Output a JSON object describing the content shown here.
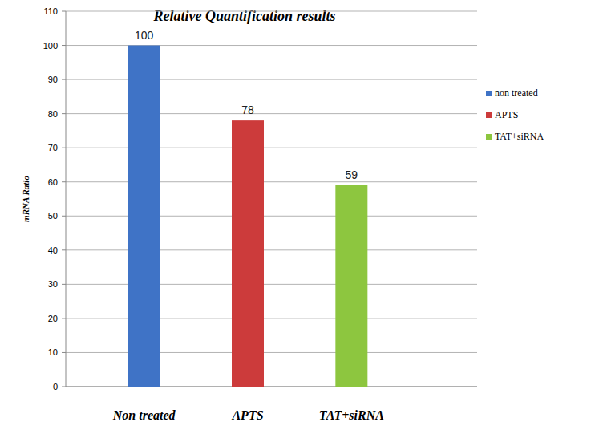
{
  "chart_data": {
    "type": "bar",
    "title": "Relative Quantification results",
    "y_label": "mRNA Ratio",
    "categories": [
      "Non treated",
      "APTS",
      "TAT+siRNA"
    ],
    "series": [
      {
        "name": "non treated",
        "color": "#3f73c6",
        "values": [
          100,
          null,
          null
        ]
      },
      {
        "name": "APTS",
        "color": "#cc3b3b",
        "values": [
          null,
          78,
          null
        ]
      },
      {
        "name": "TAT+siRNA",
        "color": "#8dc63f",
        "values": [
          null,
          null,
          59
        ]
      }
    ],
    "ylim": [
      0,
      110
    ],
    "yticks": [
      0,
      10,
      20,
      30,
      40,
      50,
      60,
      70,
      80,
      90,
      100,
      110
    ],
    "grid": true,
    "legend": "right",
    "data_labels": true
  }
}
